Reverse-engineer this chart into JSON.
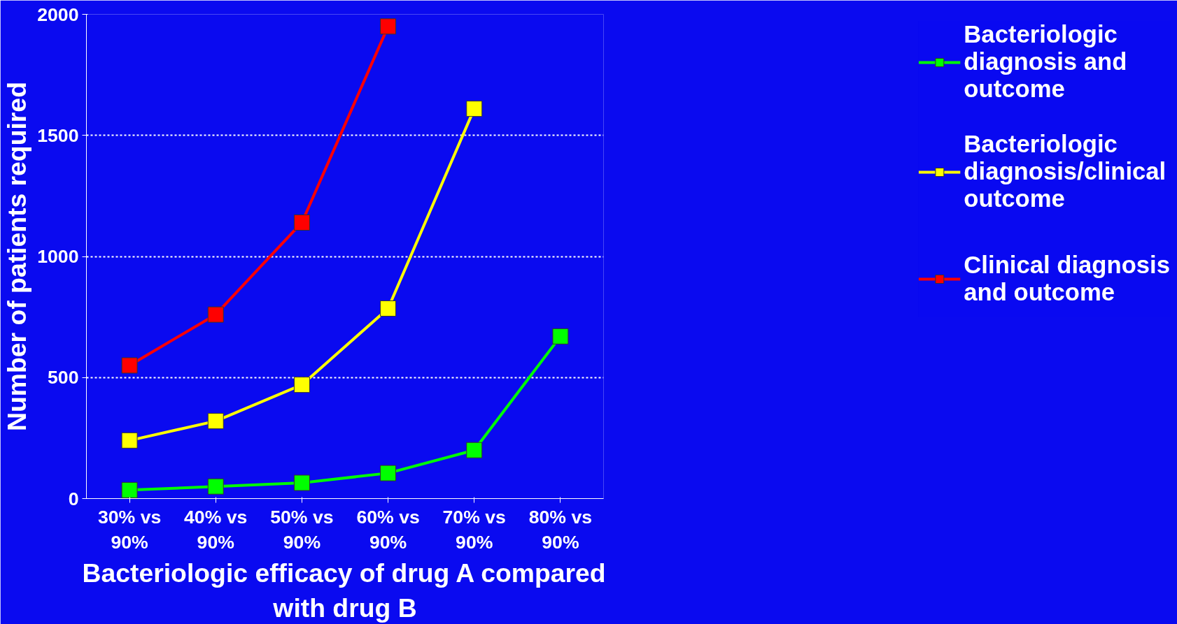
{
  "chart_data": {
    "type": "line",
    "xlabel": "Bacteriologic efficacy of drug A compared with drug B",
    "ylabel": "Number of patients required",
    "categories": [
      "30% vs 90%",
      "40% vs 90%",
      "50% vs 90%",
      "60% vs 90%",
      "70% vs 90%",
      "80% vs 90%"
    ],
    "series": [
      {
        "name": "Bacteriologic diagnosis and outcome",
        "color": "#00ff00",
        "values": [
          35,
          50,
          65,
          105,
          200,
          670
        ]
      },
      {
        "name": "Bacteriologic diagnosis/clinical outcome",
        "color": "#ffff00",
        "values": [
          240,
          320,
          470,
          785,
          1610,
          null
        ]
      },
      {
        "name": "Clinical diagnosis and outcome",
        "color": "#ff0000",
        "values": [
          550,
          760,
          1140,
          1950,
          null,
          null
        ]
      }
    ],
    "ylim": [
      0,
      2000
    ],
    "yticks": [
      0,
      500,
      1000,
      1500,
      2000
    ],
    "grid": "y",
    "legend": "right",
    "marker": "square",
    "line_style": "solid"
  }
}
